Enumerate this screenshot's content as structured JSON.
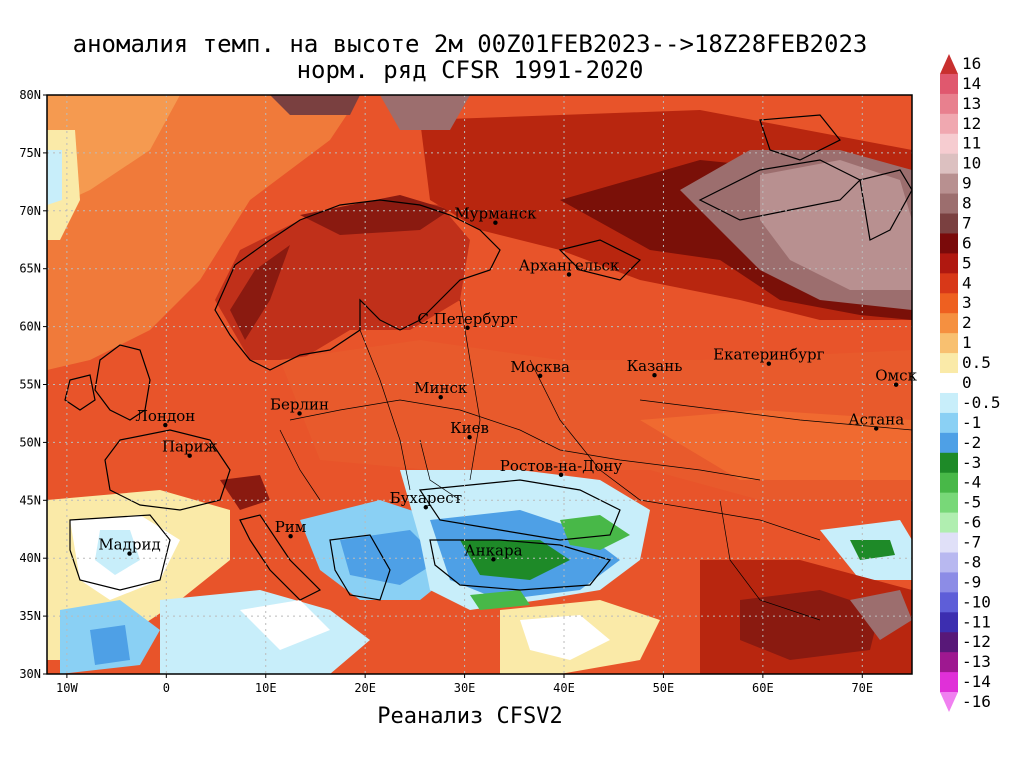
{
  "title": {
    "line1": "аномалия темп. на высоте 2м 00Z01FEB2023-->18Z28FEB2023",
    "line2": "норм. ряд CFSR 1991-2020"
  },
  "footer": "Реанализ CFSV2",
  "map": {
    "lon_range": [
      -12,
      75
    ],
    "lat_range": [
      30,
      80
    ],
    "lat_ticks": [
      "80N",
      "75N",
      "70N",
      "65N",
      "60N",
      "55N",
      "50N",
      "45N",
      "40N",
      "35N",
      "30N"
    ],
    "lon_ticks": [
      "10W",
      "0",
      "10E",
      "20E",
      "30E",
      "40E",
      "50E",
      "60E",
      "70E"
    ],
    "cities": [
      {
        "name": "Мурманск",
        "lon": 33.1,
        "lat": 68.97
      },
      {
        "name": "Архангельск",
        "lon": 40.5,
        "lat": 64.5
      },
      {
        "name": "С.Петербург",
        "lon": 30.3,
        "lat": 59.9
      },
      {
        "name": "Москва",
        "lon": 37.6,
        "lat": 55.75
      },
      {
        "name": "Казань",
        "lon": 49.1,
        "lat": 55.8
      },
      {
        "name": "Екатеринбург",
        "lon": 60.6,
        "lat": 56.8
      },
      {
        "name": "Омск",
        "lon": 73.4,
        "lat": 54.98
      },
      {
        "name": "Астана",
        "lon": 71.4,
        "lat": 51.2
      },
      {
        "name": "Минск",
        "lon": 27.6,
        "lat": 53.9
      },
      {
        "name": "Киев",
        "lon": 30.5,
        "lat": 50.45
      },
      {
        "name": "Берлин",
        "lon": 13.4,
        "lat": 52.5
      },
      {
        "name": "Лондон",
        "lon": -0.1,
        "lat": 51.5
      },
      {
        "name": "Париж",
        "lon": 2.35,
        "lat": 48.85
      },
      {
        "name": "Ростов-на-Дону",
        "lon": 39.7,
        "lat": 47.2
      },
      {
        "name": "Бухарест",
        "lon": 26.1,
        "lat": 44.4
      },
      {
        "name": "Рим",
        "lon": 12.5,
        "lat": 41.9
      },
      {
        "name": "Мадрид",
        "lon": -3.7,
        "lat": 40.4
      },
      {
        "name": "Анкара",
        "lon": 32.9,
        "lat": 39.9
      }
    ]
  },
  "legend": {
    "labels": [
      "16",
      "14",
      "13",
      "12",
      "11",
      "10",
      "9",
      "8",
      "7",
      "6",
      "5",
      "4",
      "3",
      "2",
      "1",
      "0.5",
      "0",
      "-0.5",
      "-1",
      "-2",
      "-3",
      "-4",
      "-5",
      "-6",
      "-7",
      "-8",
      "-9",
      "-10",
      "-11",
      "-12",
      "-13",
      "-14",
      "-16"
    ],
    "colors": [
      "#c8302f",
      "#e0586e",
      "#e8808e",
      "#f0a8b0",
      "#f6ccd0",
      "#dcc0c0",
      "#b89090",
      "#9c6e6e",
      "#7a4040",
      "#7a0a0a",
      "#b01810",
      "#d83818",
      "#ee6020",
      "#f59040",
      "#f8c070",
      "#faeaa8",
      "#ffffff",
      "#c8eefa",
      "#8ad0f4",
      "#4ea0e6",
      "#1e8a28",
      "#48b848",
      "#78d878",
      "#b0eeb0",
      "#e0e0f8",
      "#b8b8f0",
      "#8c8ce6",
      "#5e5ed8",
      "#3c2eb0",
      "#581878",
      "#9e1890",
      "#e030d8",
      "#f080f0"
    ]
  }
}
